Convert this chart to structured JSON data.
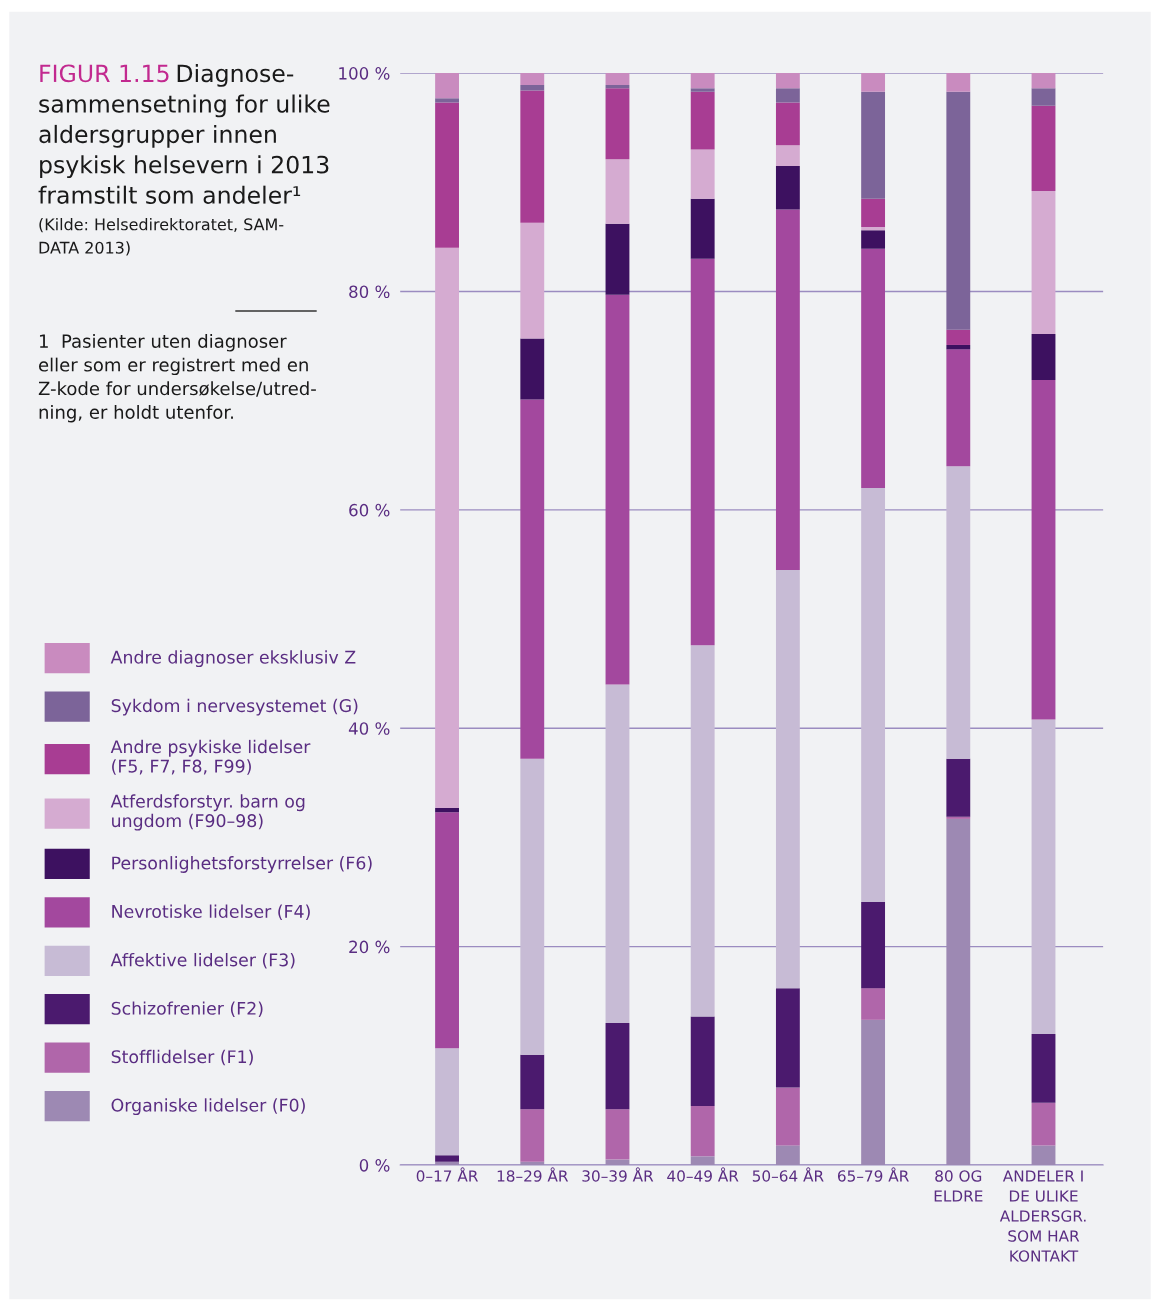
{
  "chart_data": {
    "type": "bar",
    "stacked": true,
    "title": "FIGUR 1.15",
    "subtitle": "Diagnose-\nsammensetning for ulike\naldersgrupper innen\npsykisk helsevern i 2013\nframstilt som andeler¹",
    "annotations": [
      "(Kilde: Helsedirektoratet, SAM-\nDATA 2013)",
      "1  Pasienter uten diagnoser\neller som er registrert med en\nZ-kode for undersøkelse/utred-\nning, er holdt utenfor."
    ],
    "categories": [
      "0–17 ÅR",
      "18–29 ÅR",
      "30–39 ÅR",
      "40–49 ÅR",
      "50–64 ÅR",
      "65–79 ÅR",
      "80 OG\nELDRE",
      "ANDELER I\nDE ULIKE\nALDERSGR.\nSOM HAR\nKONTAKT"
    ],
    "series": [
      {
        "name": "Organiske lidelser (F0)",
        "color": "#9d89b3",
        "values": [
          0.3,
          0.3,
          0.5,
          0.8,
          1.8,
          13.3,
          31.7,
          1.8
        ]
      },
      {
        "name": "Stofflidelser (F1)",
        "color": "#b066aa",
        "values": [
          0,
          4.8,
          4.6,
          4.6,
          5.3,
          2.9,
          0.2,
          3.9
        ]
      },
      {
        "name": "Schizofrenier (F2)",
        "color": "#4b1a6e",
        "values": [
          0.6,
          5.0,
          7.9,
          8.2,
          9.1,
          7.9,
          5.3,
          6.3
        ]
      },
      {
        "name": "Affektive lidelser (F3)",
        "color": "#c7bbd5",
        "values": [
          9.8,
          27.1,
          31.0,
          34.0,
          38.3,
          37.9,
          26.8,
          28.8
        ]
      },
      {
        "name": "Nevrotiske lidelser (F4)",
        "color": "#a3489e",
        "values": [
          21.6,
          32.9,
          35.7,
          35.4,
          33.0,
          21.9,
          10.7,
          31.1
        ]
      },
      {
        "name": "Personlighetsforstyrrelser (F6)",
        "color": "#3d1160",
        "values": [
          0.4,
          5.6,
          6.5,
          5.5,
          4.0,
          1.7,
          0.4,
          4.2
        ]
      },
      {
        "name": "Atferdsforstyr. barn og\nungdom (F90–98)",
        "color": "#d5abd1",
        "values": [
          51.3,
          10.6,
          5.9,
          4.5,
          1.9,
          0.3,
          0,
          13.1
        ]
      },
      {
        "name": "Andre psykiske lidelser\n(F5, F7, F8, F99)",
        "color": "#a83d93",
        "values": [
          13.3,
          12.1,
          6.5,
          5.3,
          3.9,
          2.6,
          1.4,
          7.8
        ]
      },
      {
        "name": "Sykdom i nervesystemet (G)",
        "color": "#7c6499",
        "values": [
          0.4,
          0.5,
          0.3,
          0.3,
          1.3,
          9.8,
          21.8,
          1.6
        ]
      },
      {
        "name": "Andre diagnoser eksklusiv Z",
        "color": "#c98bbf",
        "values": [
          2.3,
          1.1,
          1.1,
          1.4,
          1.4,
          1.7,
          1.7,
          1.4
        ]
      }
    ],
    "ylim": [
      0,
      100
    ],
    "yticks": [
      {
        "value": 0,
        "label": "0 %"
      },
      {
        "value": 20,
        "label": "20 %"
      },
      {
        "value": 40,
        "label": "40 %"
      },
      {
        "value": 60,
        "label": "60 %"
      },
      {
        "value": 80,
        "label": "80 %"
      },
      {
        "value": 100,
        "label": "100 %"
      }
    ],
    "grid": "y",
    "legend": "left"
  }
}
